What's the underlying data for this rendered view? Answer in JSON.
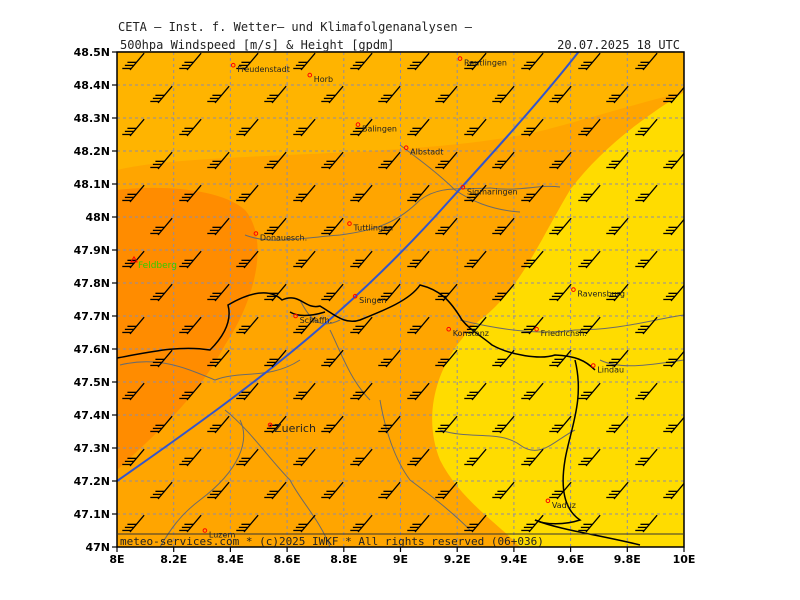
{
  "header": {
    "title": "CETA – Inst. f. Wetter– und Klimafolgenanalysen –",
    "layer": "500hpa Windspeed [m/s] & Height [gpdm]",
    "datetime": "20.07.2025 18 UTC"
  },
  "footer": "meteo-services.com * (c)2025 IWKF * All rights reserved (06+036)",
  "axes": {
    "y_ticks": [
      "48.5N",
      "48.4N",
      "48.3N",
      "48.2N",
      "48.1N",
      "48N",
      "47.9N",
      "47.8N",
      "47.7N",
      "47.6N",
      "47.5N",
      "47.4N",
      "47.3N",
      "47.2N",
      "47.1N",
      "47N"
    ],
    "x_ticks": [
      "8E",
      "8.2E",
      "8.4E",
      "8.6E",
      "8.8E",
      "9E",
      "9.2E",
      "9.4E",
      "9.6E",
      "9.8E",
      "10E"
    ],
    "lon_range": [
      8.0,
      10.0
    ],
    "lat_range": [
      47.0,
      48.5
    ]
  },
  "colors": {
    "wind_high": "#ff8c00",
    "wind_mid": "#ffa500",
    "wind_base": "#ffb400",
    "wind_low": "#ffdc00",
    "height_contour": "#3355cc",
    "border": "#000000",
    "river": "#666666",
    "city_marker": "#ff0000",
    "peak_label": "#33cc00"
  },
  "cities": [
    {
      "name": "Freudenstadt",
      "lon": 8.41,
      "lat": 48.46
    },
    {
      "name": "Horb",
      "lon": 8.68,
      "lat": 48.43
    },
    {
      "name": "Reutlingen",
      "lon": 9.21,
      "lat": 48.48
    },
    {
      "name": "Balingen",
      "lon": 8.85,
      "lat": 48.28
    },
    {
      "name": "Albstadt",
      "lon": 9.02,
      "lat": 48.21
    },
    {
      "name": "Sigmaringen",
      "lon": 9.22,
      "lat": 48.09
    },
    {
      "name": "Tuttlingen",
      "lon": 8.82,
      "lat": 47.98
    },
    {
      "name": "Donauesch.",
      "lon": 8.49,
      "lat": 47.95
    },
    {
      "name": "Singen",
      "lon": 8.84,
      "lat": 47.76
    },
    {
      "name": "Schaffh.",
      "lon": 8.63,
      "lat": 47.7
    },
    {
      "name": "Konstanz",
      "lon": 9.17,
      "lat": 47.66
    },
    {
      "name": "Ravensburg",
      "lon": 9.61,
      "lat": 47.78
    },
    {
      "name": "Friedrichsh.",
      "lon": 9.48,
      "lat": 47.66
    },
    {
      "name": "Lindau",
      "lon": 9.68,
      "lat": 47.55
    },
    {
      "name": "Zuerich",
      "lon": 8.54,
      "lat": 47.37
    },
    {
      "name": "Vaduz",
      "lon": 9.52,
      "lat": 47.14
    },
    {
      "name": "Luzern",
      "lon": 8.31,
      "lat": 47.05
    }
  ],
  "peak": {
    "name": "Feldberg",
    "lon": 8.0,
    "lat": 47.87
  }
}
